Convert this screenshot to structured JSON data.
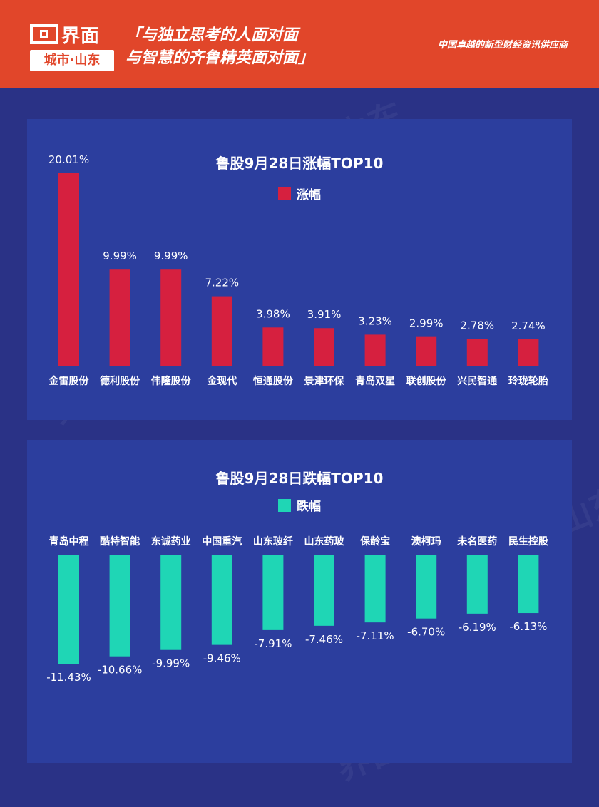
{
  "header": {
    "logo_name": "界面",
    "logo_city": "城市·山东",
    "slogan_line1": "「与独立思考的人面对面",
    "slogan_line2": "与智慧的齐鲁精英面对面」",
    "tagline": "中国卓越的新型财经资讯供应商",
    "bg_color": "#e1462a"
  },
  "watermark_text": "界面 城市·山东",
  "chart_data": [
    {
      "type": "bar",
      "title": "鲁股9月28日涨幅TOP10",
      "categories": [
        "金雷股份",
        "德利股份",
        "伟隆股份",
        "金现代",
        "恒通股份",
        "景津环保",
        "青岛双星",
        "联创股份",
        "兴民智通",
        "玲珑轮胎"
      ],
      "series": [
        {
          "name": "涨幅",
          "color": "#d6203f",
          "values": [
            20.01,
            9.99,
            9.99,
            7.22,
            3.98,
            3.91,
            3.23,
            2.99,
            2.78,
            2.74
          ],
          "labels": [
            "20.01%",
            "9.99%",
            "9.99%",
            "7.22%",
            "3.98%",
            "3.91%",
            "3.23%",
            "2.99%",
            "2.78%",
            "2.74%"
          ]
        }
      ],
      "ylim": [
        0,
        20.01
      ],
      "legend": "top-center",
      "grid": false
    },
    {
      "type": "bar",
      "title": "鲁股9月28日跌幅TOP10",
      "categories": [
        "青岛中程",
        "酷特智能",
        "东诚药业",
        "中国重汽",
        "山东玻纤",
        "山东药玻",
        "保龄宝",
        "澳柯玛",
        "未名医药",
        "民生控股"
      ],
      "series": [
        {
          "name": "跌幅",
          "color": "#1fd6b5",
          "values": [
            -11.43,
            -10.66,
            -9.99,
            -9.46,
            -7.91,
            -7.46,
            -7.11,
            -6.7,
            -6.19,
            -6.13
          ],
          "labels": [
            "-11.43%",
            "-10.66%",
            "-9.99%",
            "-9.46%",
            "-7.91%",
            "-7.46%",
            "-7.11%",
            "-6.70%",
            "-6.19%",
            "-6.13%"
          ]
        }
      ],
      "ylim": [
        -11.43,
        0
      ],
      "legend": "top-center",
      "grid": false
    }
  ]
}
